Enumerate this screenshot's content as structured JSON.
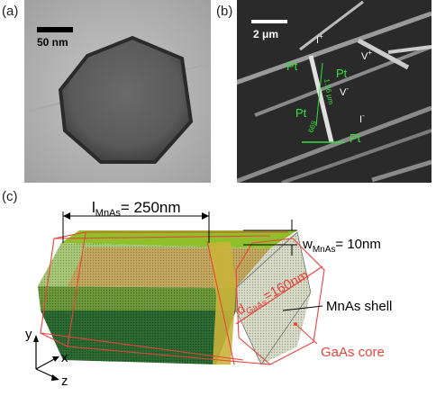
{
  "panels": {
    "a": {
      "label": "(a)",
      "scale_bar": "50 nm"
    },
    "b": {
      "label": "(b)",
      "scale_bar": "2 μm",
      "contacts": [
        "Pt",
        "Pt",
        "Pt",
        "Pt"
      ],
      "terminals": {
        "i_plus": {
          "base": "I",
          "sup": "+"
        },
        "v_plus": {
          "base": "V",
          "sup": "+"
        },
        "v_minus": {
          "base": "V",
          "sup": "-"
        },
        "i_minus": {
          "base": "I",
          "sup": "-"
        }
      },
      "distances": [
        "1.96 μm",
        "669"
      ]
    },
    "c": {
      "label": "(c)",
      "length_label": {
        "base": "l",
        "sub": "MnAs",
        "rest": "= 250nm"
      },
      "width_label": {
        "base": "w",
        "sub": "MnAs",
        "rest": "= 10nm"
      },
      "diameter_label": {
        "base": "d",
        "sub": "GaAs",
        "rest": "=160nm"
      },
      "shell_label": "MnAs shell",
      "core_label": "GaAs core",
      "axes": [
        "y",
        "x",
        "z"
      ]
    }
  },
  "colors": {
    "shell_green": "#8fbf3a",
    "dark_green": "#2f6b2a",
    "core_tan": "#c9a55a",
    "core_red": "#e8453c",
    "sem_green": "#35e03a"
  }
}
